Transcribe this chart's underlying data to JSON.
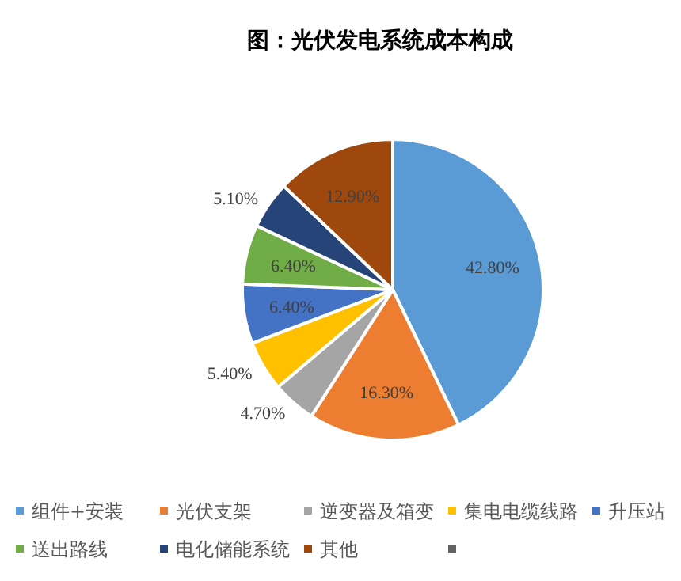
{
  "chart_data": {
    "type": "pie",
    "title": "图：光伏发电系统成本构成",
    "categories": [
      "组件+安装",
      "光伏支架",
      "逆变器及箱变",
      "集电电缆线路",
      "升压站",
      "送出路线",
      "电化储能系统",
      "其他",
      null
    ],
    "values": [
      42.8,
      16.3,
      4.7,
      5.4,
      6.4,
      6.4,
      5.1,
      12.9,
      0
    ],
    "value_labels": [
      "42.80%",
      "16.30%",
      "4.70%",
      "5.40%",
      "6.40%",
      "6.40%",
      "5.10%",
      "12.90%",
      null
    ],
    "colors": [
      "#5b9bd5",
      "#ed7d31",
      "#a5a5a5",
      "#ffc000",
      "#4472c4",
      "#70ad47",
      "#264478",
      "#9e480e",
      "#636363"
    ],
    "legend": "bottom"
  }
}
